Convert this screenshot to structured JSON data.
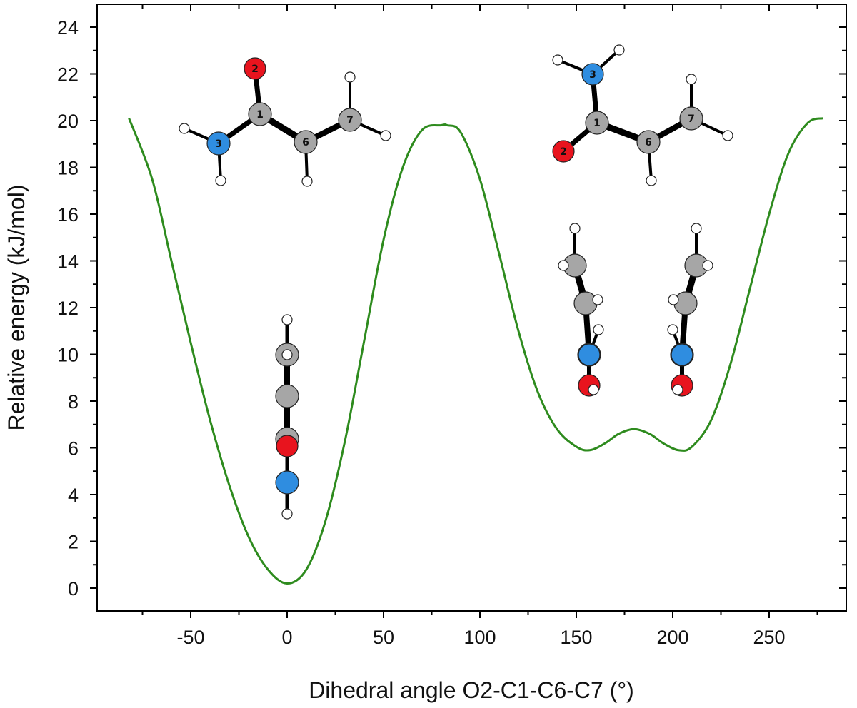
{
  "chart_data": {
    "type": "line",
    "xlabel": "Dihedral angle O2-C1-C6-C7 (°)",
    "ylabel": "Relative energy (kJ/mol)",
    "xlim": [
      -100,
      290
    ],
    "ylim": [
      -1,
      24.5
    ],
    "xticks": [
      -50,
      0,
      50,
      100,
      150,
      200,
      250
    ],
    "yticks": [
      0,
      2,
      4,
      6,
      8,
      10,
      12,
      14,
      16,
      18,
      20,
      22,
      24
    ],
    "grid": false,
    "legend": "none",
    "series": [
      {
        "color": "#2e8b1e",
        "x": [
          -82,
          -70,
          -60,
          -50,
          -40,
          -30,
          -20,
          -10,
          0,
          10,
          20,
          30,
          40,
          50,
          60,
          70,
          80,
          83,
          90,
          100,
          110,
          120,
          130,
          140,
          150,
          157,
          165,
          172,
          180,
          188,
          195,
          203,
          210,
          220,
          230,
          240,
          250,
          260,
          270,
          278
        ],
        "y": [
          20.1,
          17.5,
          14.0,
          10.5,
          7.2,
          4.4,
          2.2,
          0.8,
          0.2,
          0.8,
          2.9,
          6.3,
          10.6,
          14.9,
          18.0,
          19.6,
          19.8,
          19.8,
          19.5,
          17.5,
          14.3,
          11.0,
          8.4,
          6.8,
          6.05,
          5.9,
          6.2,
          6.6,
          6.8,
          6.6,
          6.2,
          5.9,
          6.05,
          7.2,
          9.6,
          12.8,
          16.0,
          18.6,
          19.9,
          20.1
        ]
      }
    ],
    "molecule_annotations": [
      {
        "name": "conformer-0",
        "atom_labels": [
          "2",
          "1",
          "3",
          "6",
          "7"
        ]
      },
      {
        "name": "conformer-180",
        "atom_labels": [
          "3",
          "1",
          "2",
          "6",
          "7"
        ]
      }
    ],
    "colors": {
      "curve": "#2e8b1e",
      "carbon": "#a6a6a6",
      "oxygen": "#e8141e",
      "nitrogen": "#2f8de0",
      "hydrogen": "#ffffff"
    }
  }
}
